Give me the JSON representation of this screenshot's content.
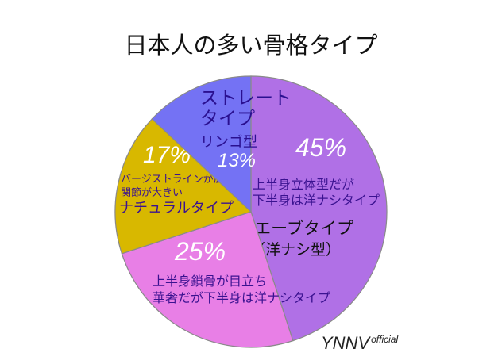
{
  "chart_data": {
    "type": "pie",
    "title": "日本人の多い骨格タイプ",
    "start_angle_deg": 0,
    "direction": "clockwise",
    "slices": [
      {
        "name": "ウエーブタイプ",
        "name_sub": "（洋ナシ型）",
        "value": 45,
        "value_label": "45%",
        "desc": [
          "上半身立体型だが",
          "下半身は洋ナシタイプ"
        ],
        "color": "#b070e6"
      },
      {
        "name": "",
        "name_sub": "",
        "value": 25,
        "value_label": "25%",
        "desc": [
          "上半身鎖骨が目立ち",
          "華奢だが下半身は洋ナシタイプ"
        ],
        "color": "#e87fe6"
      },
      {
        "name": "ナチュラルタイプ",
        "name_sub": "",
        "value": 17,
        "value_label": "17%",
        "desc": [
          "バージストラインが広く",
          "関節が大きい"
        ],
        "color": "#d8b800"
      },
      {
        "name": "ストレートタイプ",
        "name_sub": "",
        "value": 13,
        "value_label": "13%",
        "desc": [
          "リンゴ型"
        ],
        "color": "#7472f4"
      }
    ]
  },
  "brand": {
    "main": "YNNV",
    "sub": "official"
  }
}
